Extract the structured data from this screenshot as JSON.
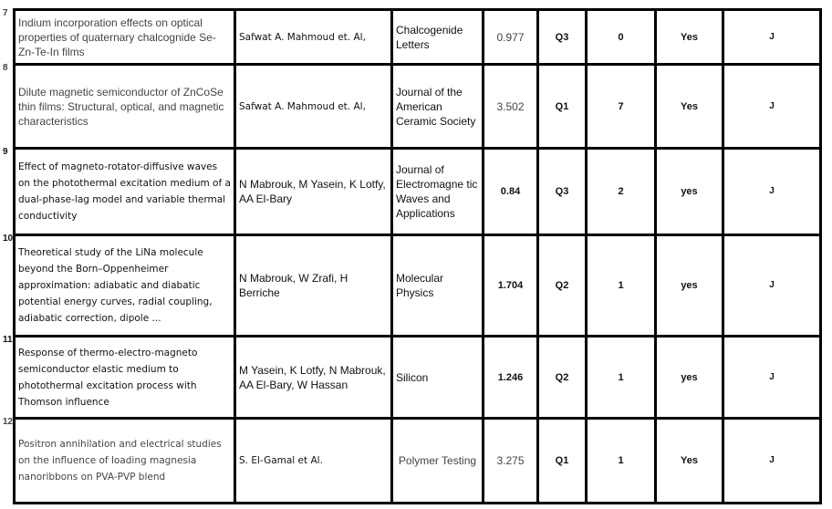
{
  "rows": [
    {
      "no": "7",
      "title": "Indium incorporation effects on optical properties of quaternary chalcognide Se-Zn-Te-In films",
      "authors": "Safwat A. Mahmoud et. Al,",
      "journal": "Chalcogenide Letters",
      "impact": "0.977",
      "quartile": "Q3",
      "citations": "0",
      "indexed": "Yes",
      "type": "J"
    },
    {
      "no": "8",
      "title": "Dilute magnetic semiconductor of ZnCoSe thin films: Structural, optical, and magnetic characteristics",
      "authors": "Safwat A. Mahmoud et. Al,",
      "journal": "Journal of the American Ceramic Society",
      "impact": "3.502",
      "quartile": "Q1",
      "citations": "7",
      "indexed": "Yes",
      "type": "J"
    },
    {
      "no": "9",
      "title": "Effect of magneto-rotator-diffusive waves on the photothermal excitation medium of a dual-phase-lag model and variable thermal conductivity",
      "authors": "N Mabrouk, M Yasein, K Lotfy, AA El-Bary",
      "journal": "Journal of Electromagne tic Waves and Applications",
      "impact": "0.84",
      "quartile": "Q3",
      "citations": "2",
      "indexed": "yes",
      "type": "J"
    },
    {
      "no": "10",
      "title": "Theoretical study of the LiNa molecule beyond the Born–Oppenheimer approximation: adiabatic and diabatic potential energy curves, radial coupling, adiabatic correction, dipole ...",
      "authors": "N Mabrouk, W Zrafi, H Berriche",
      "journal": "Molecular Physics",
      "impact": "1.704",
      "quartile": "Q2",
      "citations": "1",
      "indexed": "yes",
      "type": "J"
    },
    {
      "no": "11",
      "title": "Response of thermo-electro-magneto semiconductor elastic medium to photothermal excitation process with Thomson influence",
      "authors": "M Yasein, K Lotfy, N Mabrouk, AA El-Bary, W Hassan",
      "journal": "Silicon",
      "impact": "1.246",
      "quartile": "Q2",
      "citations": "1",
      "indexed": "yes",
      "type": "J"
    },
    {
      "no": "12",
      "title": "Positron annihilation and electrical studies on the influence of loading magnesia nanoribbons on PVA-PVP blend",
      "authors": "S. El-Gamal et Al.",
      "journal": "Polymer Testing",
      "impact": "3.275",
      "quartile": "Q1",
      "citations": "1",
      "indexed": "Yes",
      "type": "J"
    }
  ]
}
